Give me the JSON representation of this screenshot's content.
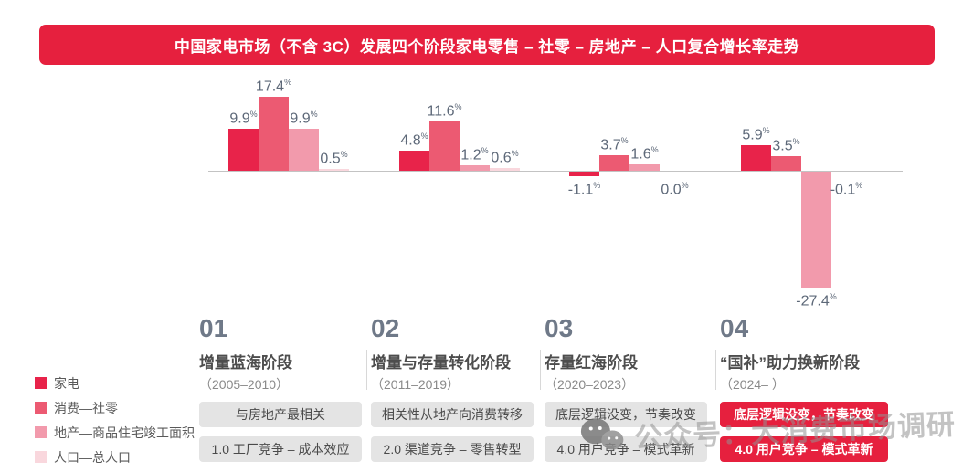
{
  "banner": {
    "title": "中国家电市场（不含 3C）发展四个阶段家电零售 – 社零 – 房地产 – 人口复合增长率走势"
  },
  "colors": {
    "accent_red": "#e6203e",
    "series": [
      "#e8234a",
      "#ec5a72",
      "#f29aac",
      "#f9d7dd"
    ],
    "value_label": "#5d6878",
    "axis_line": "#c3c3c3",
    "box_gray": "#e4e4e4"
  },
  "chart_data": {
    "type": "bar",
    "categories": [
      "2005–2010",
      "2011–2019",
      "2020–2023",
      "2024–"
    ],
    "series": [
      {
        "name": "家电",
        "values": [
          9.9,
          4.8,
          -1.1,
          5.9
        ]
      },
      {
        "name": "消费—社零",
        "values": [
          17.4,
          11.6,
          3.7,
          3.5
        ]
      },
      {
        "name": "地产—商品住宅竣工面积",
        "values": [
          9.9,
          1.2,
          1.6,
          -27.4
        ]
      },
      {
        "name": "人口—总人口",
        "values": [
          0.5,
          0.6,
          0.0,
          -0.1
        ]
      }
    ],
    "unit": "%",
    "ylim": [
      -30,
      20
    ],
    "grid": false,
    "legend_position": "bottom-left",
    "title": "中国家电市场（不含 3C）发展四个阶段家电零售 – 社零 – 房地产 – 人口复合增长率走势"
  },
  "legend": {
    "items": [
      {
        "label": "家电",
        "color": "#e8234a"
      },
      {
        "label": "消费—社零",
        "color": "#ec5a72"
      },
      {
        "label": "地产—商品住宅竣工面积",
        "color": "#f29aac"
      },
      {
        "label": "人口—总人口",
        "color": "#f9d7dd"
      }
    ]
  },
  "stages": [
    {
      "number": "01",
      "title": "增量蓝海阶段",
      "years": "（2005–2010）",
      "boxes": [
        "与房地产最相关",
        "1.0 工厂竞争 – 成本效应"
      ],
      "highlight": false
    },
    {
      "number": "02",
      "title": "增量与存量转化阶段",
      "years": "（2011–2019）",
      "boxes": [
        "相关性从地产向消费转移",
        "2.0 渠道竞争 – 零售转型"
      ],
      "highlight": false
    },
    {
      "number": "03",
      "title": "存量红海阶段",
      "years": "（2020–2023）",
      "boxes": [
        "底层逻辑没变，节奏改变",
        "4.0 用户竞争 – 模式革新"
      ],
      "highlight": false
    },
    {
      "number": "04",
      "title": "“国补”助力换新阶段",
      "years": "（2024– ）",
      "boxes": [
        "底层逻辑没变，节奏改变",
        "4.0 用户竞争 – 模式革新"
      ],
      "highlight": true
    }
  ],
  "watermark": {
    "icon": "wechat-icon",
    "text": "公众号：大消费市场调研"
  }
}
